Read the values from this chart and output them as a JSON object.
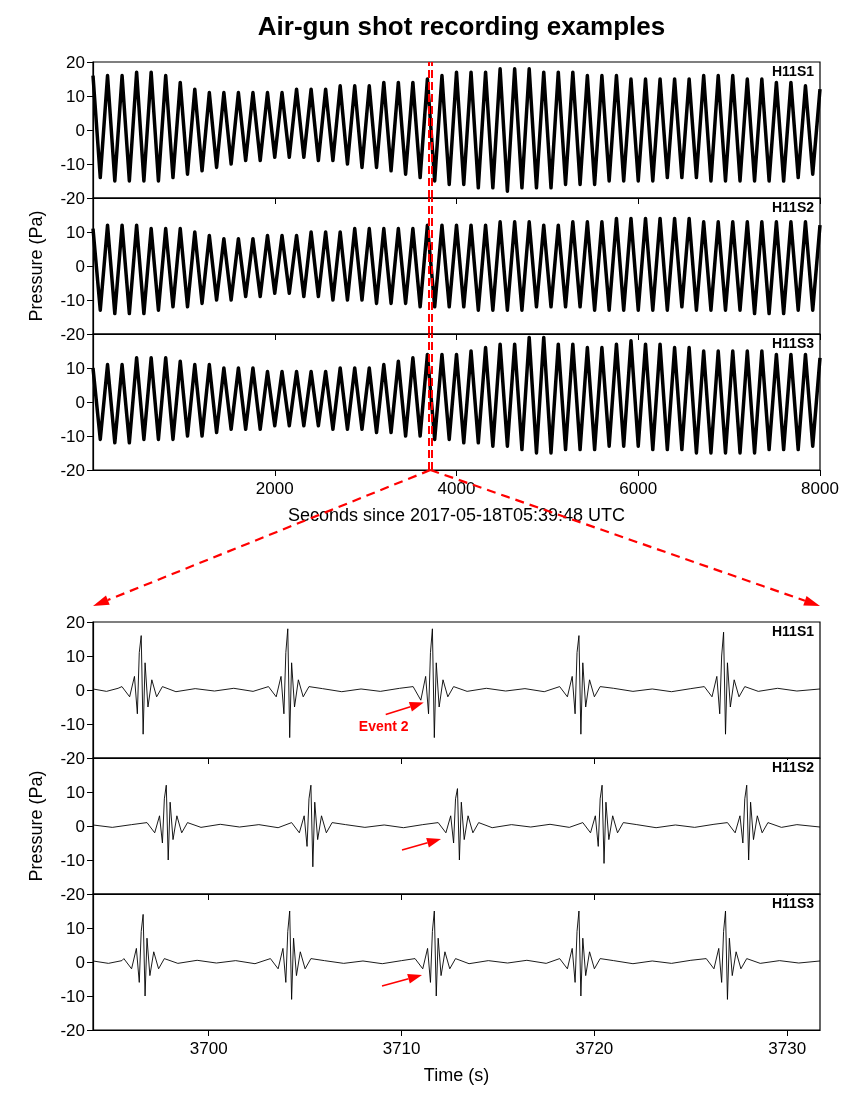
{
  "chart_data": [
    {
      "type": "line",
      "title": "Air-gun shot recording examples",
      "xlim": [
        0,
        8000
      ],
      "xticks": [
        2000,
        4000,
        6000,
        8000
      ],
      "ylim": [
        -20,
        20
      ],
      "yticks": [
        -20,
        -10,
        0,
        10,
        20
      ],
      "tick_labels": "y",
      "x": [
        0,
        80,
        160,
        240,
        320,
        400,
        480,
        560,
        640,
        720,
        800,
        880,
        960,
        1040,
        1120,
        1200,
        1280,
        1360,
        1440,
        1520,
        1600,
        1680,
        1760,
        1840,
        1920,
        2000,
        2080,
        2160,
        2240,
        2320,
        2400,
        2480,
        2560,
        2640,
        2720,
        2800,
        2880,
        2960,
        3040,
        3120,
        3200,
        3280,
        3360,
        3440,
        3520,
        3600,
        3680,
        3760,
        3840,
        3920,
        4000,
        4080,
        4160,
        4240,
        4320,
        4400,
        4480,
        4560,
        4640,
        4720,
        4800,
        4880,
        4960,
        5040,
        5120,
        5200,
        5280,
        5360,
        5440,
        5520,
        5600,
        5680,
        5760,
        5840,
        5920,
        6000,
        6080,
        6160,
        6240,
        6320,
        6400,
        6480,
        6560,
        6640,
        6720,
        6800,
        6880,
        6960,
        7040,
        7120,
        7200,
        7280,
        7360,
        7440,
        7520,
        7600,
        7680,
        7760,
        7840,
        7920,
        8000
      ],
      "series": [
        {
          "name": "H11S1",
          "color": "#000000",
          "values": [
            16,
            -14,
            16,
            -15,
            16,
            -15,
            17,
            -15,
            17,
            -15,
            16,
            -14,
            14,
            -13,
            12,
            -12,
            11,
            -11,
            11,
            -10,
            11,
            -9,
            11,
            -9,
            11,
            -8,
            11,
            -8,
            12,
            -8,
            12,
            -9,
            12,
            -9,
            13,
            -10,
            13,
            -11,
            13,
            -11,
            14,
            -12,
            14,
            -13,
            14,
            -14,
            15,
            -15,
            16,
            -16,
            17,
            -16,
            17,
            -17,
            17,
            -17,
            18,
            -18,
            18,
            -17,
            18,
            -17,
            17,
            -17,
            17,
            -16,
            17,
            -16,
            16,
            -16,
            16,
            -15,
            16,
            -15,
            15,
            -15,
            15,
            -15,
            15,
            -14,
            15,
            -14,
            15,
            -14,
            16,
            -15,
            16,
            -15,
            16,
            -15,
            15,
            -15,
            15,
            -15,
            14,
            -15,
            14,
            -14,
            13,
            -13,
            12
          ]
        }
      ],
      "ref_lines": [
        {
          "axis": "x",
          "value": 3694,
          "color": "#ff0000",
          "line_style": "dashed"
        },
        {
          "axis": "x",
          "value": 3732,
          "color": "#ff0000",
          "line_style": "dashed"
        }
      ]
    },
    {
      "type": "line",
      "ylabel": "Pressure (Pa)",
      "xlim": [
        0,
        8000
      ],
      "xticks": [
        2000,
        4000,
        6000,
        8000
      ],
      "ylim": [
        -20,
        20
      ],
      "yticks": [
        -20,
        -10,
        0,
        10
      ],
      "tick_labels": "y",
      "x": [
        0,
        80,
        160,
        240,
        320,
        400,
        480,
        560,
        640,
        720,
        800,
        880,
        960,
        1040,
        1120,
        1200,
        1280,
        1360,
        1440,
        1520,
        1600,
        1680,
        1760,
        1840,
        1920,
        2000,
        2080,
        2160,
        2240,
        2320,
        2400,
        2480,
        2560,
        2640,
        2720,
        2800,
        2880,
        2960,
        3040,
        3120,
        3200,
        3280,
        3360,
        3440,
        3520,
        3600,
        3680,
        3760,
        3840,
        3920,
        4000,
        4080,
        4160,
        4240,
        4320,
        4400,
        4480,
        4560,
        4640,
        4720,
        4800,
        4880,
        4960,
        5040,
        5120,
        5200,
        5280,
        5360,
        5440,
        5520,
        5600,
        5680,
        5760,
        5840,
        5920,
        6000,
        6080,
        6160,
        6240,
        6320,
        6400,
        6480,
        6560,
        6640,
        6720,
        6800,
        6880,
        6960,
        7040,
        7120,
        7200,
        7280,
        7360,
        7440,
        7520,
        7600,
        7680,
        7760,
        7840,
        7920,
        8000
      ],
      "series": [
        {
          "name": "H11S2",
          "color": "#000000",
          "values": [
            11,
            -13,
            12,
            -14,
            12,
            -14,
            12,
            -14,
            11,
            -13,
            11,
            -12,
            11,
            -12,
            10,
            -11,
            9,
            -10,
            8,
            -10,
            8,
            -9,
            8,
            -9,
            9,
            -8,
            9,
            -8,
            9,
            -9,
            10,
            -9,
            10,
            -10,
            10,
            -10,
            11,
            -10,
            11,
            -11,
            11,
            -11,
            11,
            -11,
            11,
            -12,
            12,
            -12,
            12,
            -12,
            12,
            -12,
            12,
            -13,
            12,
            -13,
            13,
            -13,
            13,
            -13,
            13,
            -12,
            12,
            -12,
            12,
            -12,
            13,
            -12,
            13,
            -13,
            13,
            -13,
            14,
            -13,
            14,
            -13,
            14,
            -13,
            14,
            -13,
            14,
            -12,
            14,
            -13,
            13,
            -13,
            13,
            -13,
            13,
            -13,
            13,
            -14,
            13,
            -14,
            13,
            -14,
            13,
            -13,
            13,
            -13,
            12
          ]
        }
      ],
      "ref_lines": [
        {
          "axis": "x",
          "value": 3694,
          "color": "#ff0000",
          "line_style": "dashed"
        },
        {
          "axis": "x",
          "value": 3732,
          "color": "#ff0000",
          "line_style": "dashed"
        }
      ]
    },
    {
      "type": "line",
      "xlabel": "Seconds since 2017-05-18T05:39:48 UTC",
      "xlim": [
        0,
        8000
      ],
      "xticks": [
        2000,
        4000,
        6000,
        8000
      ],
      "ylim": [
        -20,
        20
      ],
      "yticks": [
        -20,
        -10,
        0,
        10
      ],
      "x": [
        0,
        80,
        160,
        240,
        320,
        400,
        480,
        560,
        640,
        720,
        800,
        880,
        960,
        1040,
        1120,
        1200,
        1280,
        1360,
        1440,
        1520,
        1600,
        1680,
        1760,
        1840,
        1920,
        2000,
        2080,
        2160,
        2240,
        2320,
        2400,
        2480,
        2560,
        2640,
        2720,
        2800,
        2880,
        2960,
        3040,
        3120,
        3200,
        3280,
        3360,
        3440,
        3520,
        3600,
        3680,
        3760,
        3840,
        3920,
        4000,
        4080,
        4160,
        4240,
        4320,
        4400,
        4480,
        4560,
        4640,
        4720,
        4800,
        4880,
        4960,
        5040,
        5120,
        5200,
        5280,
        5360,
        5440,
        5520,
        5600,
        5680,
        5760,
        5840,
        5920,
        6000,
        6080,
        6160,
        6240,
        6320,
        6400,
        6480,
        6560,
        6640,
        6720,
        6800,
        6880,
        6960,
        7040,
        7120,
        7200,
        7280,
        7360,
        7440,
        7520,
        7600,
        7680,
        7760,
        7840,
        7920,
        8000
      ],
      "series": [
        {
          "name": "H11S3",
          "color": "#000000",
          "values": [
            10,
            -11,
            11,
            -12,
            11,
            -12,
            13,
            -11,
            13,
            -11,
            13,
            -11,
            12,
            -10,
            11,
            -10,
            11,
            -9,
            10,
            -8,
            10,
            -8,
            10,
            -8,
            9,
            -7,
            9,
            -7,
            9,
            -7,
            9,
            -7,
            9,
            -8,
            10,
            -8,
            10,
            -8,
            10,
            -9,
            11,
            -9,
            12,
            -10,
            13,
            -10,
            14,
            -11,
            14,
            -11,
            14,
            -12,
            15,
            -12,
            16,
            -13,
            17,
            -13,
            17,
            -14,
            19,
            -15,
            19,
            -15,
            17,
            -14,
            17,
            -14,
            16,
            -14,
            16,
            -13,
            17,
            -13,
            18,
            -13,
            17,
            -14,
            17,
            -14,
            16,
            -14,
            16,
            -15,
            15,
            -15,
            15,
            -15,
            15,
            -15,
            15,
            -15,
            15,
            -14,
            14,
            -14,
            14,
            -14,
            14,
            -13,
            13
          ]
        }
      ],
      "ref_lines": [
        {
          "axis": "x",
          "value": 3694,
          "color": "#ff0000",
          "line_style": "dashed"
        },
        {
          "axis": "x",
          "value": 3732,
          "color": "#ff0000",
          "line_style": "dashed"
        }
      ]
    },
    {
      "type": "line",
      "xlim": [
        3694,
        3731.7
      ],
      "xticks": [
        3700,
        3710,
        3720,
        3730
      ],
      "ylim": [
        -20,
        20
      ],
      "yticks": [
        -20,
        -10,
        0,
        10,
        20
      ],
      "tick_labels": "y",
      "annotations": [
        {
          "text": "Event 2",
          "x": 3711.1,
          "y": -3.7
        }
      ],
      "series": [
        {
          "name": "H11S1",
          "color": "#000000",
          "x": [
            3694.0,
            3694.7,
            3695.3,
            3695.5,
            3695.9,
            3696.15,
            3696.3,
            3696.4,
            3696.5,
            3696.6,
            3696.7,
            3696.85,
            3697.05,
            3697.3,
            3697.6,
            3698.3,
            3699.3,
            3700.3,
            3701.3,
            3702.3,
            3703.1,
            3703.5,
            3703.75,
            3703.9,
            3704.0,
            3704.1,
            3704.2,
            3704.3,
            3704.45,
            3704.65,
            3704.9,
            3705.2,
            3705.9,
            3706.9,
            3707.9,
            3708.9,
            3709.9,
            3710.6,
            3711.0,
            3711.25,
            3711.4,
            3711.5,
            3711.6,
            3711.7,
            3711.8,
            3711.95,
            3712.15,
            3712.4,
            3712.7,
            3713.4,
            3714.4,
            3715.4,
            3716.4,
            3717.4,
            3718.2,
            3718.6,
            3718.85,
            3719.0,
            3719.1,
            3719.2,
            3719.3,
            3719.4,
            3719.55,
            3719.75,
            3720.0,
            3720.3,
            3721.0,
            3722.0,
            3723.0,
            3724.0,
            3725.0,
            3725.7,
            3726.1,
            3726.35,
            3726.5,
            3726.6,
            3726.7,
            3726.8,
            3726.9,
            3727.05,
            3727.25,
            3727.5,
            3727.8,
            3728.5,
            3729.5,
            3730.5,
            3731.7
          ],
          "values": [
            0.3,
            -0.4,
            0.5,
            1,
            -2,
            4,
            -7,
            11,
            16,
            -13,
            8,
            -5,
            3,
            -2,
            1,
            -0.5,
            0.4,
            -0.3,
            0.5,
            -0.4,
            1,
            -2,
            4,
            -7,
            11,
            18,
            -14,
            8,
            -5,
            3,
            -2,
            1,
            0.4,
            -0.5,
            0.3,
            -0.4,
            0.5,
            1,
            -3,
            4,
            -7,
            11,
            18,
            -14,
            8,
            -5,
            3,
            -2,
            1,
            -0.4,
            0.5,
            -0.3,
            0.4,
            -0.5,
            1,
            -2,
            4,
            -7,
            11,
            16,
            -13,
            8,
            -5,
            3,
            -2,
            1,
            0.5,
            -0.4,
            0.3,
            -0.5,
            0.4,
            1,
            -2,
            4,
            -7,
            10,
            17,
            -13,
            8,
            -5,
            3,
            -2,
            1,
            -0.4,
            0.5,
            -0.3,
            0.3
          ]
        }
      ]
    },
    {
      "type": "line",
      "ylabel": "Pressure (Pa)",
      "xlim": [
        3694,
        3731.7
      ],
      "xticks": [
        3700,
        3710,
        3720,
        3730
      ],
      "ylim": [
        -20,
        20
      ],
      "yticks": [
        -20,
        -10,
        0,
        10
      ],
      "tick_labels": "y",
      "series": [
        {
          "name": "H11S2",
          "color": "#000000",
          "x": [
            3694.0,
            3695.0,
            3696.0,
            3696.8,
            3697.2,
            3697.45,
            3697.6,
            3697.7,
            3697.8,
            3697.9,
            3698.0,
            3698.15,
            3698.35,
            3698.6,
            3698.9,
            3699.6,
            3700.6,
            3701.6,
            3702.6,
            3703.6,
            3704.3,
            3704.7,
            3704.95,
            3705.1,
            3705.2,
            3705.3,
            3705.4,
            3705.5,
            3705.65,
            3705.85,
            3706.1,
            3706.4,
            3707.1,
            3708.1,
            3709.1,
            3710.1,
            3711.1,
            3711.9,
            3712.3,
            3712.55,
            3712.7,
            3712.8,
            3712.9,
            3713.0,
            3713.1,
            3713.25,
            3713.45,
            3713.7,
            3714.0,
            3714.7,
            3715.7,
            3716.7,
            3717.7,
            3718.7,
            3719.4,
            3719.8,
            3720.05,
            3720.2,
            3720.3,
            3720.4,
            3720.5,
            3720.6,
            3720.75,
            3720.95,
            3721.2,
            3721.5,
            3722.2,
            3723.2,
            3724.2,
            3725.2,
            3726.2,
            3726.9,
            3727.3,
            3727.55,
            3727.7,
            3727.8,
            3727.9,
            3728.0,
            3728.1,
            3728.25,
            3728.45,
            3728.7,
            3729.0,
            3729.7,
            3730.5,
            3731.7
          ],
          "values": [
            0.3,
            -0.4,
            0.4,
            1,
            -2,
            3,
            -5,
            8,
            12,
            -10,
            7,
            -4,
            3,
            -2,
            1,
            -0.4,
            0.5,
            -0.3,
            0.4,
            -0.5,
            1,
            -2,
            3,
            -6,
            8,
            12,
            -12,
            7,
            -4,
            3,
            -2,
            1,
            0.4,
            -0.4,
            0.3,
            -0.5,
            0.4,
            1,
            -2,
            3,
            -5,
            8,
            11,
            -10,
            7,
            -4,
            3,
            -2,
            1,
            -0.5,
            0.4,
            -0.3,
            0.5,
            -0.4,
            1,
            -2,
            3,
            -6,
            8,
            12,
            -11,
            7,
            -4,
            3,
            -2,
            1,
            0.4,
            -0.5,
            0.3,
            -0.4,
            0.5,
            1,
            -2,
            3,
            -5,
            8,
            12,
            -10,
            7,
            -4,
            3,
            -2,
            1,
            -0.4,
            0.4,
            -0.3
          ]
        }
      ]
    },
    {
      "type": "line",
      "xlabel": "Time (s)",
      "xlim": [
        3694,
        3731.7
      ],
      "xticks": [
        3700,
        3710,
        3720,
        3730
      ],
      "ylim": [
        -20,
        20
      ],
      "yticks": [
        -20,
        -10,
        0,
        10
      ],
      "series": [
        {
          "name": "H11S3",
          "color": "#000000",
          "x": [
            3694.0,
            3694.8,
            3695.5,
            3695.6,
            3696.0,
            3696.25,
            3696.4,
            3696.5,
            3696.6,
            3696.7,
            3696.8,
            3696.95,
            3697.15,
            3697.4,
            3697.7,
            3698.4,
            3699.4,
            3700.4,
            3701.4,
            3702.4,
            3703.2,
            3703.6,
            3703.85,
            3704.0,
            3704.1,
            3704.2,
            3704.3,
            3704.4,
            3704.55,
            3704.75,
            3705.0,
            3705.3,
            3706.0,
            3707.0,
            3708.0,
            3709.0,
            3710.0,
            3710.7,
            3711.1,
            3711.35,
            3711.5,
            3711.6,
            3711.7,
            3711.8,
            3711.9,
            3712.05,
            3712.25,
            3712.5,
            3712.8,
            3713.5,
            3714.5,
            3715.5,
            3716.5,
            3717.5,
            3718.2,
            3718.6,
            3718.85,
            3719.0,
            3719.1,
            3719.2,
            3719.3,
            3719.4,
            3719.55,
            3719.75,
            3720.0,
            3720.3,
            3721.0,
            3722.0,
            3723.0,
            3724.0,
            3725.0,
            3725.8,
            3726.2,
            3726.45,
            3726.6,
            3726.7,
            3726.8,
            3726.9,
            3727.0,
            3727.15,
            3727.35,
            3727.6,
            3727.9,
            3728.6,
            3729.6,
            3730.6,
            3731.7
          ],
          "values": [
            0.3,
            -0.4,
            0.4,
            1,
            -2,
            4,
            -6,
            9,
            14,
            -10,
            7,
            -4,
            3,
            -2,
            1,
            -0.4,
            0.5,
            -0.3,
            0.4,
            -0.5,
            1,
            -2,
            4,
            -6,
            9,
            15,
            -11,
            7,
            -4,
            3,
            -2,
            1,
            0.4,
            -0.4,
            0.3,
            -0.5,
            0.4,
            1,
            -2,
            4,
            -6,
            9,
            15,
            -10,
            7,
            -4,
            3,
            -2,
            1,
            -0.5,
            0.4,
            -0.3,
            0.5,
            -0.4,
            1,
            -2,
            4,
            -6,
            9,
            15,
            -10,
            7,
            -4,
            3,
            -2,
            1,
            0.4,
            -0.5,
            0.3,
            -0.4,
            0.5,
            1,
            -2,
            4,
            -6,
            9,
            15,
            -11,
            7,
            -4,
            3,
            -2,
            1,
            -0.4,
            0.4,
            -0.3,
            0.3
          ]
        }
      ]
    }
  ]
}
